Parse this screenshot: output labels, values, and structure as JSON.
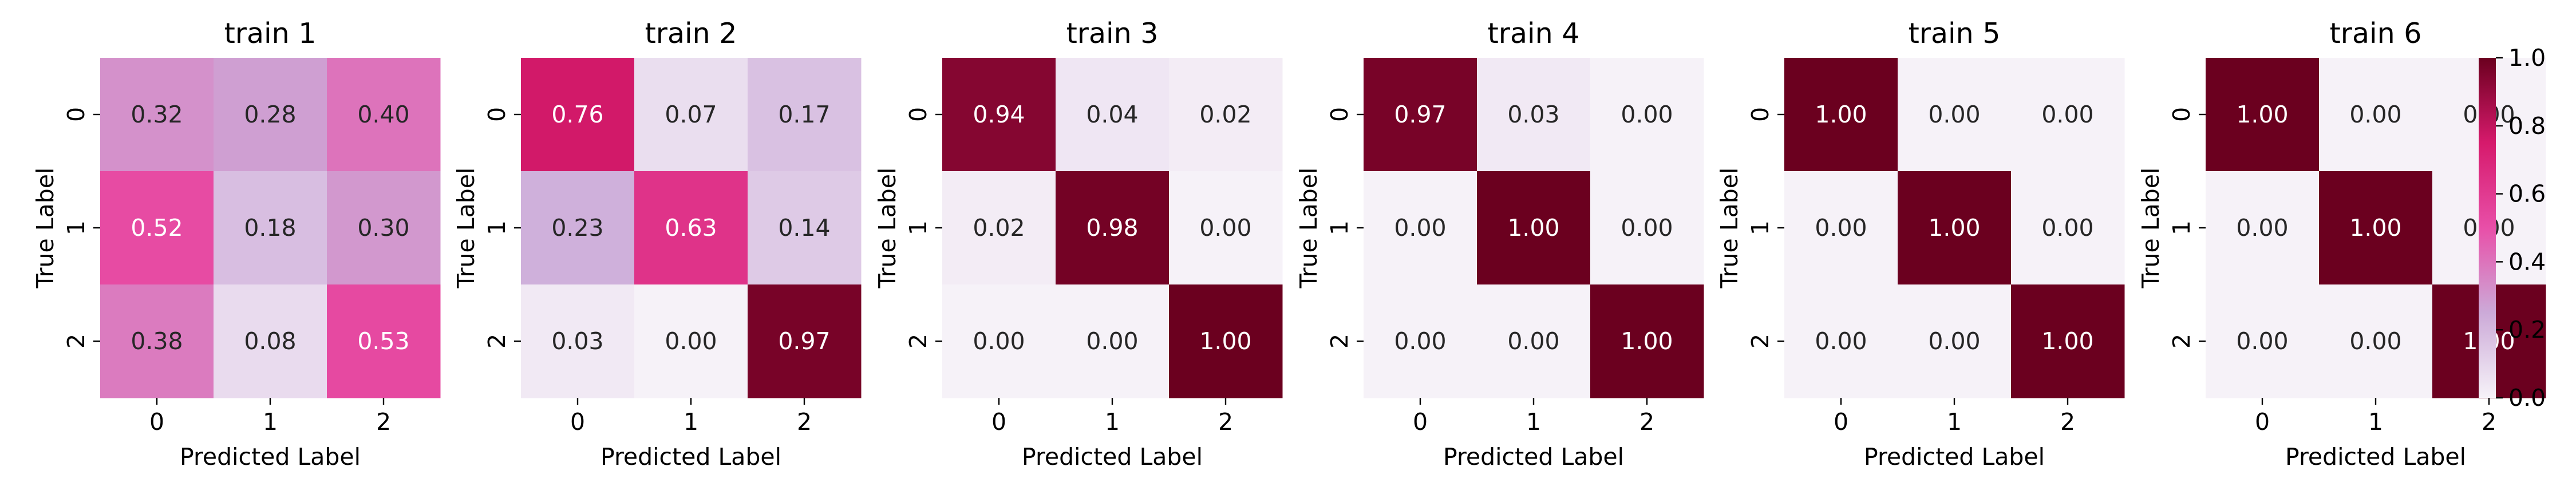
{
  "chart_data": [
    {
      "type": "heatmap",
      "title": "train 1",
      "xlabel": "Predicted Label",
      "ylabel": "True Label",
      "x_categories": [
        "0",
        "1",
        "2"
      ],
      "y_categories": [
        "0",
        "1",
        "2"
      ],
      "values": [
        [
          0.32,
          0.28,
          0.4
        ],
        [
          0.52,
          0.18,
          0.3
        ],
        [
          0.38,
          0.08,
          0.53
        ]
      ],
      "labels": [
        [
          "0.32",
          "0.28",
          "0.40"
        ],
        [
          "0.52",
          "0.18",
          "0.30"
        ],
        [
          "0.38",
          "0.08",
          "0.53"
        ]
      ]
    },
    {
      "type": "heatmap",
      "title": "train 2",
      "xlabel": "Predicted Label",
      "ylabel": "True Label",
      "x_categories": [
        "0",
        "1",
        "2"
      ],
      "y_categories": [
        "0",
        "1",
        "2"
      ],
      "values": [
        [
          0.76,
          0.07,
          0.17
        ],
        [
          0.23,
          0.63,
          0.14
        ],
        [
          0.03,
          0.0,
          0.97
        ]
      ],
      "labels": [
        [
          "0.76",
          "0.07",
          "0.17"
        ],
        [
          "0.23",
          "0.63",
          "0.14"
        ],
        [
          "0.03",
          "0.00",
          "0.97"
        ]
      ]
    },
    {
      "type": "heatmap",
      "title": "train 3",
      "xlabel": "Predicted Label",
      "ylabel": "True Label",
      "x_categories": [
        "0",
        "1",
        "2"
      ],
      "y_categories": [
        "0",
        "1",
        "2"
      ],
      "values": [
        [
          0.94,
          0.04,
          0.02
        ],
        [
          0.02,
          0.98,
          0.0
        ],
        [
          0.0,
          0.0,
          1.0
        ]
      ],
      "labels": [
        [
          "0.94",
          "0.04",
          "0.02"
        ],
        [
          "0.02",
          "0.98",
          "0.00"
        ],
        [
          "0.00",
          "0.00",
          "1.00"
        ]
      ]
    },
    {
      "type": "heatmap",
      "title": "train 4",
      "xlabel": "Predicted Label",
      "ylabel": "True Label",
      "x_categories": [
        "0",
        "1",
        "2"
      ],
      "y_categories": [
        "0",
        "1",
        "2"
      ],
      "values": [
        [
          0.97,
          0.03,
          0.0
        ],
        [
          0.0,
          1.0,
          0.0
        ],
        [
          0.0,
          0.0,
          1.0
        ]
      ],
      "labels": [
        [
          "0.97",
          "0.03",
          "0.00"
        ],
        [
          "0.00",
          "1.00",
          "0.00"
        ],
        [
          "0.00",
          "0.00",
          "1.00"
        ]
      ]
    },
    {
      "type": "heatmap",
      "title": "train 5",
      "xlabel": "Predicted Label",
      "ylabel": "True Label",
      "x_categories": [
        "0",
        "1",
        "2"
      ],
      "y_categories": [
        "0",
        "1",
        "2"
      ],
      "values": [
        [
          1.0,
          0.0,
          0.0
        ],
        [
          0.0,
          1.0,
          0.0
        ],
        [
          0.0,
          0.0,
          1.0
        ]
      ],
      "labels": [
        [
          "1.00",
          "0.00",
          "0.00"
        ],
        [
          "0.00",
          "1.00",
          "0.00"
        ],
        [
          "0.00",
          "0.00",
          "1.00"
        ]
      ]
    },
    {
      "type": "heatmap",
      "title": "train 6",
      "xlabel": "Predicted Label",
      "ylabel": "True Label",
      "x_categories": [
        "0",
        "1",
        "2"
      ],
      "y_categories": [
        "0",
        "1",
        "2"
      ],
      "values": [
        [
          1.0,
          0.0,
          0.0
        ],
        [
          0.0,
          1.0,
          0.0
        ],
        [
          0.0,
          0.0,
          1.0
        ]
      ],
      "labels": [
        [
          "1.00",
          "0.00",
          "0.00"
        ],
        [
          "0.00",
          "1.00",
          "0.00"
        ],
        [
          "0.00",
          "0.00",
          "1.00"
        ]
      ]
    }
  ],
  "colorbar": {
    "range": [
      0.0,
      1.0
    ],
    "ticks": [
      0.0,
      0.2,
      0.4,
      0.6,
      0.8,
      1.0
    ],
    "tick_labels": [
      "0.0",
      "0.2",
      "0.4",
      "0.6",
      "0.8",
      "1.0"
    ],
    "colormap": [
      "#f6f2f8",
      "#ccaad8",
      "#e84fa8",
      "#d61a6c",
      "#6b001f"
    ]
  }
}
